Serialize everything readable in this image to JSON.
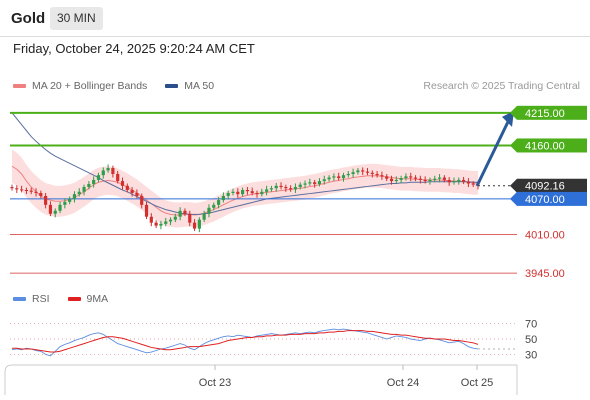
{
  "header": {
    "symbol": "Gold",
    "timeframe": "30 MIN"
  },
  "datetime": "Friday, October 24, 2025 9:20:24 AM CET",
  "legend": {
    "items": [
      {
        "label": "MA 20 + Bollinger Bands",
        "color": "#f08080"
      },
      {
        "label": "MA 50",
        "color": "#2b4f8a"
      }
    ],
    "credit": "Research © 2025 Trading Central"
  },
  "levels": [
    {
      "value": "4215.00",
      "kind": "resistance",
      "color": "#4caf1a"
    },
    {
      "value": "4160.00",
      "kind": "resistance",
      "color": "#4caf1a"
    },
    {
      "value": "4092.16",
      "kind": "current",
      "color": "#333333"
    },
    {
      "value": "4070.00",
      "kind": "pivot",
      "color": "#2f6fd8"
    },
    {
      "value": "4010.00",
      "kind": "support",
      "color": "#d32f2f"
    },
    {
      "value": "3945.00",
      "kind": "support",
      "color": "#d32f2f"
    }
  ],
  "rsi_legend": {
    "items": [
      {
        "label": "RSI",
        "color": "#5b8de0"
      },
      {
        "label": "9MA",
        "color": "#e02020"
      }
    ]
  },
  "rsi_axis": [
    "70",
    "50",
    "30"
  ],
  "x_axis": [
    "Oct 23",
    "Oct 24",
    "Oct 25"
  ],
  "chart_data": {
    "type": "candlestick",
    "price_ylim": [
      3925,
      4245
    ],
    "rsi_ylim": [
      20,
      80
    ],
    "close_series": [
      4088,
      4086,
      4085,
      4084,
      4082,
      4080,
      4075,
      4060,
      4045,
      4050,
      4060,
      4065,
      4070,
      4078,
      4082,
      4090,
      4095,
      4102,
      4110,
      4118,
      4122,
      4112,
      4100,
      4092,
      4085,
      4080,
      4075,
      4060,
      4040,
      4030,
      4025,
      4028,
      4032,
      4035,
      4040,
      4050,
      4045,
      4030,
      4020,
      4035,
      4045,
      4055,
      4060,
      4068,
      4075,
      4080,
      4082,
      4078,
      4085,
      4083,
      4080,
      4078,
      4082,
      4086,
      4088,
      4092,
      4090,
      4088,
      4086,
      4090,
      4094,
      4096,
      4098,
      4095,
      4100,
      4103,
      4106,
      4108,
      4105,
      4110,
      4112,
      4115,
      4118,
      4116,
      4114,
      4112,
      4110,
      4108,
      4104,
      4100,
      4102,
      4105,
      4108,
      4106,
      4104,
      4102,
      4100,
      4102,
      4104,
      4106,
      4102,
      4098,
      4100,
      4102,
      4099,
      4096,
      4094,
      4092
    ],
    "ma20_series": [
      4125,
      4120,
      4112,
      4100,
      4090,
      4082,
      4075,
      4070,
      4068,
      4066,
      4066,
      4067,
      4069,
      4072,
      4077,
      4082,
      4088,
      4094,
      4098,
      4100,
      4101,
      4100,
      4098,
      4094,
      4090,
      4085,
      4080,
      4074,
      4068,
      4062,
      4056,
      4050,
      4046,
      4044,
      4043,
      4043,
      4044,
      4044,
      4043,
      4044,
      4046,
      4049,
      4052,
      4056,
      4060,
      4064,
      4068,
      4071,
      4074,
      4076,
      4078,
      4079,
      4080,
      4081,
      4082,
      4083,
      4084,
      4085,
      4086,
      4087,
      4088,
      4089,
      4091,
      4092,
      4094,
      4096,
      4098,
      4100,
      4101,
      4103,
      4104,
      4106,
      4107,
      4108,
      4109,
      4109,
      4109,
      4108,
      4107,
      4106,
      4105,
      4104,
      4104,
      4104,
      4103,
      4103,
      4102,
      4102,
      4102,
      4102,
      4101,
      4101,
      4100,
      4100,
      4099,
      4098,
      4097,
      4097
    ],
    "ma50_series": [
      4215,
      4205,
      4195,
      4185,
      4175,
      4167,
      4160,
      4153,
      4147,
      4142,
      4138,
      4134,
      4130,
      4126,
      4122,
      4118,
      4114,
      4110,
      4106,
      4101,
      4097,
      4093,
      4089,
      4085,
      4082,
      4078,
      4074,
      4070,
      4066,
      4062,
      4058,
      4055,
      4052,
      4050,
      4048,
      4046,
      4045,
      4044,
      4044,
      4044,
      4045,
      4046,
      4048,
      4050,
      4052,
      4054,
      4056,
      4058,
      4060,
      4062,
      4064,
      4066,
      4068,
      4070,
      4071,
      4072,
      4073,
      4074,
      4075,
      4076,
      4077,
      4078,
      4079,
      4080,
      4081,
      4082,
      4083,
      4084,
      4085,
      4086,
      4087,
      4088,
      4089,
      4090,
      4091,
      4092,
      4093,
      4094,
      4095,
      4096,
      4096,
      4097,
      4097,
      4098,
      4098,
      4098,
      4098,
      4099,
      4099,
      4099,
      4099,
      4099,
      4099,
      4099,
      4099,
      4099,
      4098,
      4098
    ],
    "rsi_series": [
      36,
      37,
      36,
      38,
      37,
      35,
      34,
      30,
      28,
      34,
      40,
      43,
      45,
      48,
      50,
      52,
      55,
      57,
      58,
      56,
      52,
      48,
      44,
      42,
      40,
      38,
      36,
      34,
      32,
      33,
      35,
      37,
      38,
      40,
      42,
      44,
      42,
      38,
      36,
      40,
      44,
      47,
      49,
      51,
      53,
      54,
      53,
      55,
      54,
      53,
      52,
      54,
      55,
      56,
      57,
      56,
      55,
      56,
      57,
      58,
      57,
      58,
      59,
      58,
      60,
      61,
      62,
      63,
      62,
      63,
      62,
      61,
      60,
      59,
      58,
      56,
      54,
      52,
      50,
      52,
      54,
      53,
      52,
      50,
      49,
      48,
      50,
      51,
      50,
      49,
      47,
      45,
      46,
      47,
      44,
      40,
      38,
      37
    ],
    "rsi9_series": [
      38,
      38,
      37,
      37,
      37,
      36,
      35,
      34,
      33,
      33,
      34,
      36,
      38,
      40,
      42,
      44,
      46,
      48,
      50,
      52,
      53,
      53,
      52,
      51,
      49,
      47,
      45,
      43,
      41,
      39,
      38,
      37,
      36,
      36,
      37,
      38,
      39,
      40,
      40,
      40,
      41,
      42,
      43,
      44,
      46,
      48,
      49,
      50,
      51,
      52,
      52,
      53,
      53,
      54,
      54,
      55,
      55,
      55,
      56,
      56,
      56,
      57,
      57,
      57,
      58,
      58,
      59,
      59,
      60,
      60,
      61,
      61,
      61,
      61,
      60,
      60,
      59,
      58,
      57,
      56,
      56,
      55,
      55,
      54,
      53,
      52,
      51,
      51,
      50,
      50,
      50,
      49,
      48,
      48,
      47,
      46,
      45,
      43
    ],
    "bars": 98
  }
}
